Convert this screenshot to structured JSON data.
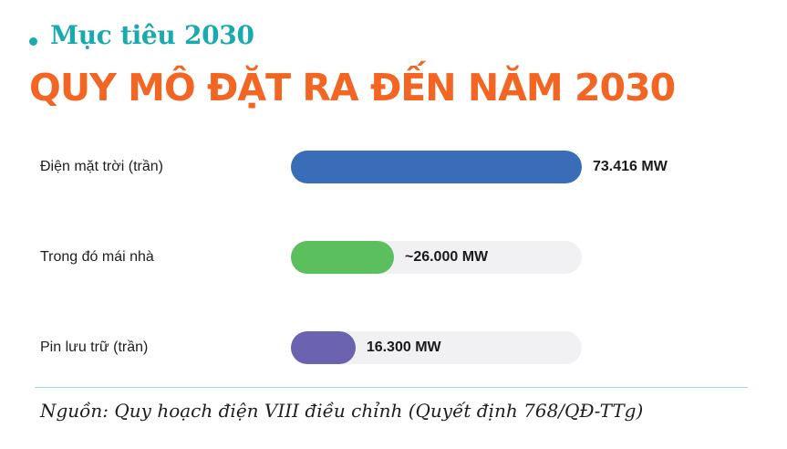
{
  "header": {
    "kicker": "Mục tiêu 2030",
    "title": "QUY MÔ ĐẶT RA ĐẾN NĂM 2030"
  },
  "chart_data": {
    "type": "bar",
    "orientation": "horizontal",
    "title": "QUY MÔ ĐẶT RA ĐẾN NĂM 2030",
    "categories": [
      "Điện mặt trời (trần)",
      "Trong đó mái nhà",
      "Pin lưu trữ (trần)"
    ],
    "values": [
      73416,
      26000,
      16300
    ],
    "value_labels": [
      "73.416 MW",
      "~26.000 MW",
      "16.300 MW"
    ],
    "unit": "MW",
    "xlim": [
      0,
      73416
    ],
    "colors": [
      "#3a6db7",
      "#5bbf5e",
      "#6b62b0"
    ],
    "grid": false,
    "legend": "none"
  },
  "footer": {
    "source": "Nguồn: Quy hoạch điện VIII điều chỉnh (Quyết định 768/QĐ-TTg)"
  }
}
